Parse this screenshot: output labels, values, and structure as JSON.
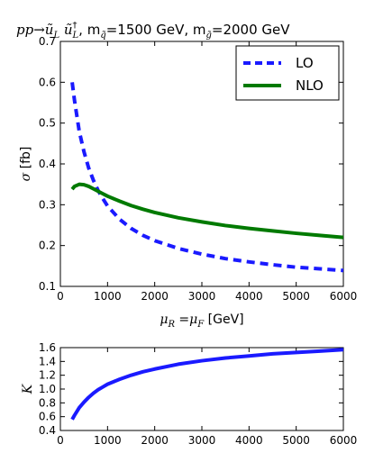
{
  "chart_data": [
    {
      "type": "line",
      "title_parts": {
        "process_main": "pp→ũ",
        "sub_L": "L",
        "ubar": " ũ",
        "dagger": "†",
        "sub_L2": "L",
        "m_sq_label": ", m",
        "m_sq_sub": "q̃",
        "m_sq_value": "=1500 GeV, m",
        "m_gl_sub": "g̃",
        "m_gl_value": "=2000 GeV"
      },
      "xlabel_parts": {
        "mu": "μ",
        "R": "R",
        "eq": " =μ",
        "F": "F",
        "unit": " [GeV]"
      },
      "ylabel_parts": {
        "sigma": "σ",
        "unit": " [fb]"
      },
      "xlim": [
        0,
        6000
      ],
      "ylim": [
        0.1,
        0.7
      ],
      "xticks": [
        0,
        1000,
        2000,
        3000,
        4000,
        5000,
        6000
      ],
      "yticks": [
        0.1,
        0.2,
        0.3,
        0.4,
        0.5,
        0.6,
        0.7
      ],
      "xtick_labels": [
        "0",
        "1000",
        "2000",
        "3000",
        "4000",
        "5000",
        "6000"
      ],
      "ytick_labels": [
        "0.1",
        "0.2",
        "0.3",
        "0.4",
        "0.5",
        "0.6",
        "0.7"
      ],
      "legend_position": "top-right",
      "series": [
        {
          "name": "LO",
          "color": "#1a1aff",
          "style": "dashed",
          "x": [
            250,
            300,
            400,
            500,
            600,
            700,
            800,
            900,
            1000,
            1250,
            1500,
            1750,
            2000,
            2500,
            3000,
            3500,
            4000,
            4500,
            5000,
            5500,
            6000
          ],
          "y": [
            0.6,
            0.555,
            0.48,
            0.43,
            0.39,
            0.36,
            0.335,
            0.315,
            0.297,
            0.265,
            0.242,
            0.225,
            0.212,
            0.193,
            0.179,
            0.168,
            0.16,
            0.153,
            0.147,
            0.143,
            0.139
          ]
        },
        {
          "name": "NLO",
          "color": "#007a00",
          "style": "solid",
          "x": [
            250,
            300,
            400,
            500,
            600,
            700,
            800,
            900,
            1000,
            1250,
            1500,
            1750,
            2000,
            2500,
            3000,
            3500,
            4000,
            4500,
            5000,
            5500,
            6000
          ],
          "y": [
            0.338,
            0.345,
            0.35,
            0.349,
            0.345,
            0.339,
            0.333,
            0.327,
            0.321,
            0.309,
            0.298,
            0.289,
            0.281,
            0.268,
            0.258,
            0.249,
            0.242,
            0.236,
            0.23,
            0.225,
            0.22
          ]
        }
      ]
    },
    {
      "type": "line",
      "ylabel": "K",
      "xlim": [
        0,
        6000
      ],
      "ylim": [
        0.4,
        1.6
      ],
      "xticks": [
        0,
        1000,
        2000,
        3000,
        4000,
        5000,
        6000
      ],
      "yticks": [
        0.4,
        0.6,
        0.8,
        1.0,
        1.2,
        1.4,
        1.6
      ],
      "xtick_labels": [
        "0",
        "1000",
        "2000",
        "3000",
        "4000",
        "5000",
        "6000"
      ],
      "ytick_labels": [
        "0.4",
        "0.6",
        "0.8",
        "1.0",
        "1.2",
        "1.4",
        "1.6"
      ],
      "series": [
        {
          "color": "#1a1aff",
          "style": "solid",
          "x": [
            250,
            300,
            400,
            500,
            600,
            700,
            800,
            900,
            1000,
            1250,
            1500,
            1750,
            2000,
            2500,
            3000,
            3500,
            4000,
            4500,
            5000,
            5500,
            6000
          ],
          "y": [
            0.56,
            0.62,
            0.73,
            0.81,
            0.88,
            0.94,
            0.99,
            1.03,
            1.07,
            1.14,
            1.2,
            1.25,
            1.29,
            1.36,
            1.41,
            1.45,
            1.48,
            1.51,
            1.53,
            1.55,
            1.57
          ]
        }
      ]
    }
  ]
}
